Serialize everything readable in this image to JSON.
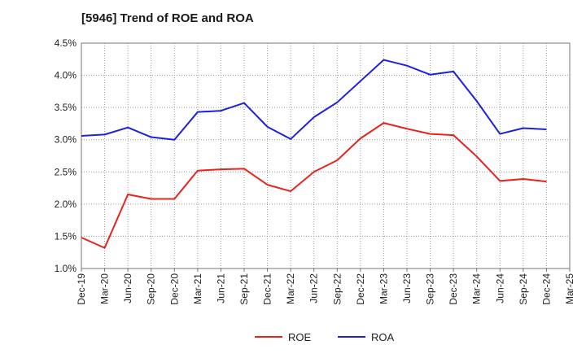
{
  "chart_data": {
    "type": "line",
    "title": "[5946]  Trend of ROE and ROA",
    "xlabel": "",
    "ylabel": "",
    "categories": [
      "Dec-19",
      "Mar-20",
      "Jun-20",
      "Sep-20",
      "Dec-20",
      "Mar-21",
      "Jun-21",
      "Sep-21",
      "Dec-21",
      "Mar-22",
      "Jun-22",
      "Sep-22",
      "Dec-22",
      "Mar-23",
      "Jun-23",
      "Sep-23",
      "Dec-23",
      "Mar-24",
      "Jun-24",
      "Sep-24",
      "Dec-24",
      "Mar-25"
    ],
    "ylim": [
      1.0,
      4.5
    ],
    "yticks": [
      "1.0%",
      "1.5%",
      "2.0%",
      "2.5%",
      "3.0%",
      "3.5%",
      "4.0%",
      "4.5%"
    ],
    "ytick_values": [
      1.0,
      1.5,
      2.0,
      2.5,
      3.0,
      3.5,
      4.0,
      4.5
    ],
    "grid": true,
    "legend_position": "bottom",
    "series": [
      {
        "name": "ROE",
        "color": "#e8231e",
        "values": [
          1.48,
          1.32,
          2.15,
          2.08,
          2.08,
          2.52,
          2.54,
          2.55,
          2.3,
          2.2,
          2.5,
          2.68,
          3.02,
          3.26,
          3.17,
          3.09,
          3.07,
          2.74,
          2.36,
          2.39,
          2.35,
          null
        ]
      },
      {
        "name": "ROA",
        "color": "#1f1fe0",
        "values": [
          3.06,
          3.08,
          3.19,
          3.04,
          3.0,
          3.43,
          3.45,
          3.57,
          3.2,
          3.01,
          3.35,
          3.58,
          3.91,
          4.24,
          4.15,
          4.01,
          4.06,
          3.6,
          3.09,
          3.18,
          3.16,
          null
        ]
      }
    ]
  }
}
